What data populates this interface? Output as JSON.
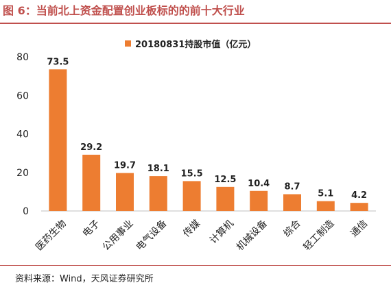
{
  "figure": {
    "title": "图 6：当前北上资金配置创业板标的的前十大行业",
    "source": "资料来源：Wind，天风证券研究所"
  },
  "colors": {
    "bar": "#ed7d31",
    "title": "#c0504d",
    "axis": "#222222"
  },
  "chart_data": {
    "type": "bar",
    "title": "",
    "xlabel": "",
    "ylabel": "",
    "ylim": [
      0,
      80
    ],
    "yticks": [
      0,
      20,
      40,
      60,
      80
    ],
    "grid": false,
    "legend_position": "top-center",
    "categories": [
      "医药生物",
      "电子",
      "公用事业",
      "电气设备",
      "传媒",
      "计算机",
      "机械设备",
      "综合",
      "轻工制造",
      "通信"
    ],
    "series": [
      {
        "name": "20180831持股市值（亿元）",
        "values": [
          73.5,
          29.2,
          19.7,
          18.1,
          15.5,
          12.5,
          10.4,
          8.7,
          5.1,
          4.2
        ],
        "data_labels": [
          "73.5",
          "29.2",
          "19.7",
          "18.1",
          "15.5",
          "12.5",
          "10.4",
          "8.7",
          "5.1",
          "4.2"
        ]
      }
    ]
  }
}
